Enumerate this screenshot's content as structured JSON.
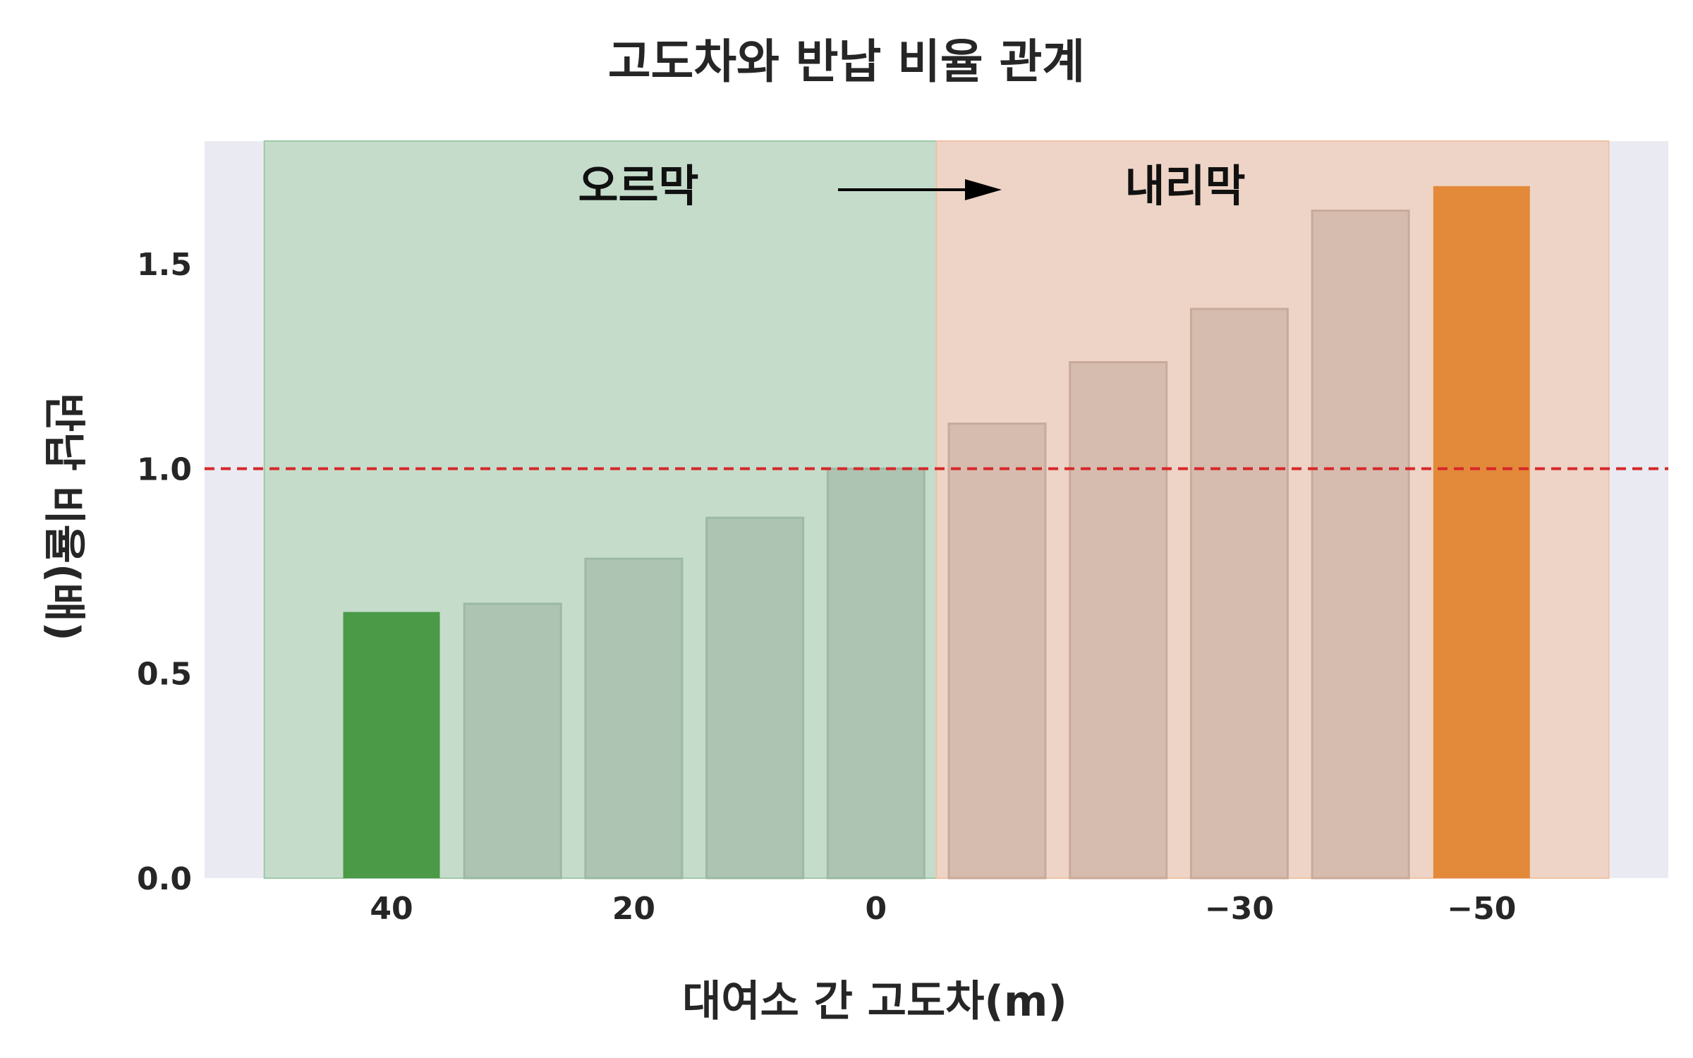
{
  "chart_data": {
    "type": "bar",
    "title": "고도차와 반납 비율 관계",
    "xlabel": "대여소 간 고도차(m)",
    "ylabel": "반납 비율(배)",
    "ylim": [
      0,
      1.8
    ],
    "yticks": [
      "0.0",
      "0.5",
      "1.0",
      "1.5"
    ],
    "xtick_labels": [
      "40",
      "20",
      "0",
      "−30",
      "−50"
    ],
    "x": [
      40,
      30,
      20,
      10,
      0,
      -10,
      -20,
      -30,
      -40,
      -50
    ],
    "values": [
      0.65,
      0.67,
      0.78,
      0.88,
      1.0,
      1.11,
      1.26,
      1.39,
      1.63,
      1.69
    ],
    "highlight": [
      "first",
      "last"
    ],
    "reference_line": {
      "y": 1.0,
      "style": "dashed",
      "color": "#d62728"
    },
    "regions": [
      {
        "label": "오르막",
        "color": "#2e8b3c"
      },
      {
        "label": "내리막",
        "color": "#f4a261"
      }
    ],
    "annotation_arrow": "오르막 → 내리막",
    "grid": false,
    "colors": {
      "background": "#eaeaf2",
      "uphill_highlight": "#4a9a48",
      "downhill_highlight": "#e3893a",
      "muted_bar": "#aec4b2",
      "muted_bar_downhill": "#d6bcae",
      "uphill_region": "#c5dccb",
      "downhill_region": "#eed4c6"
    }
  }
}
